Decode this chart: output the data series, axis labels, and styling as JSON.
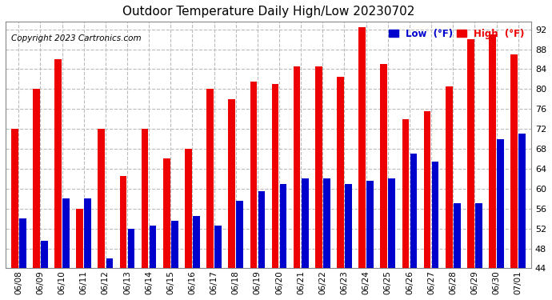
{
  "title": "Outdoor Temperature Daily High/Low 20230702",
  "copyright": "Copyright 2023 Cartronics.com",
  "legend_low": "Low  (°F)",
  "legend_high": "High  (°F)",
  "ylim": [
    44.0,
    93.5
  ],
  "yticks": [
    44.0,
    48.0,
    52.0,
    56.0,
    60.0,
    64.0,
    68.0,
    72.0,
    76.0,
    80.0,
    84.0,
    88.0,
    92.0
  ],
  "background_color": "#ffffff",
  "plot_bg_color": "#ffffff",
  "grid_color": "#bbbbbb",
  "low_color": "#0000cc",
  "high_color": "#ee0000",
  "dates": [
    "06/08",
    "06/09",
    "06/10",
    "06/11",
    "06/12",
    "06/13",
    "06/14",
    "06/15",
    "06/16",
    "06/17",
    "06/18",
    "06/19",
    "06/20",
    "06/21",
    "06/22",
    "06/23",
    "06/24",
    "06/25",
    "06/26",
    "06/27",
    "06/28",
    "06/29",
    "06/30",
    "07/01"
  ],
  "highs": [
    72.0,
    80.0,
    86.0,
    56.0,
    72.0,
    62.5,
    72.0,
    66.0,
    68.0,
    80.0,
    78.0,
    81.5,
    81.0,
    84.5,
    84.5,
    82.5,
    92.5,
    85.0,
    74.0,
    75.5,
    80.5,
    90.0,
    91.0,
    87.0
  ],
  "lows": [
    54.0,
    49.5,
    58.0,
    58.0,
    46.0,
    52.0,
    52.5,
    53.5,
    54.5,
    52.5,
    57.5,
    59.5,
    61.0,
    62.0,
    62.0,
    61.0,
    61.5,
    62.0,
    67.0,
    65.5,
    57.0,
    57.0,
    70.0,
    71.0
  ]
}
